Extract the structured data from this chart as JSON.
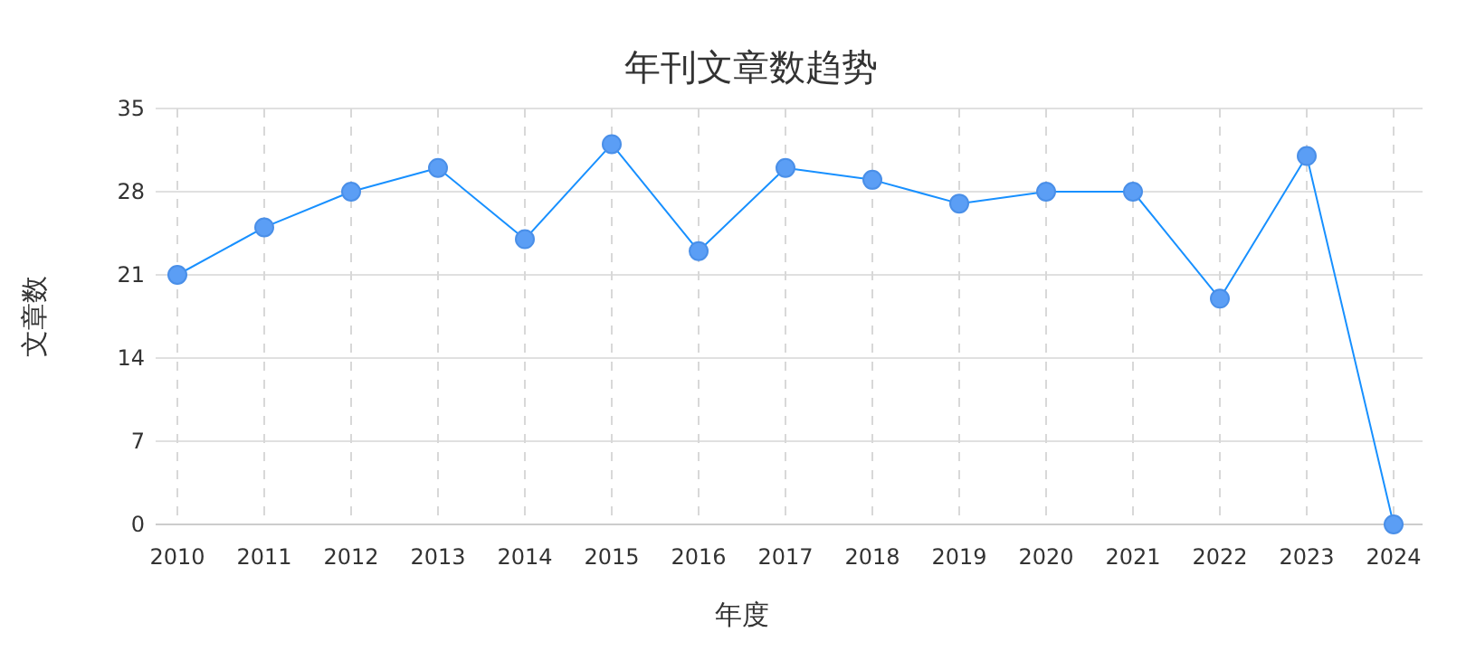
{
  "chart_data": {
    "type": "line",
    "title": "年刊文章数趋势",
    "xlabel": "年度",
    "ylabel": "文章数",
    "categories": [
      "2010",
      "2011",
      "2012",
      "2013",
      "2014",
      "2015",
      "2016",
      "2017",
      "2018",
      "2019",
      "2020",
      "2021",
      "2022",
      "2023",
      "2024"
    ],
    "series": [
      {
        "color": "#1890ff",
        "values": [
          21,
          25,
          28,
          30,
          24,
          32,
          23,
          30,
          29,
          27,
          28,
          28,
          19,
          31,
          0
        ]
      }
    ],
    "ylim": [
      0,
      35
    ],
    "yticks": [
      0,
      7,
      14,
      21,
      28,
      35
    ],
    "grid": true,
    "marker": "circle",
    "line_style": "solid"
  }
}
